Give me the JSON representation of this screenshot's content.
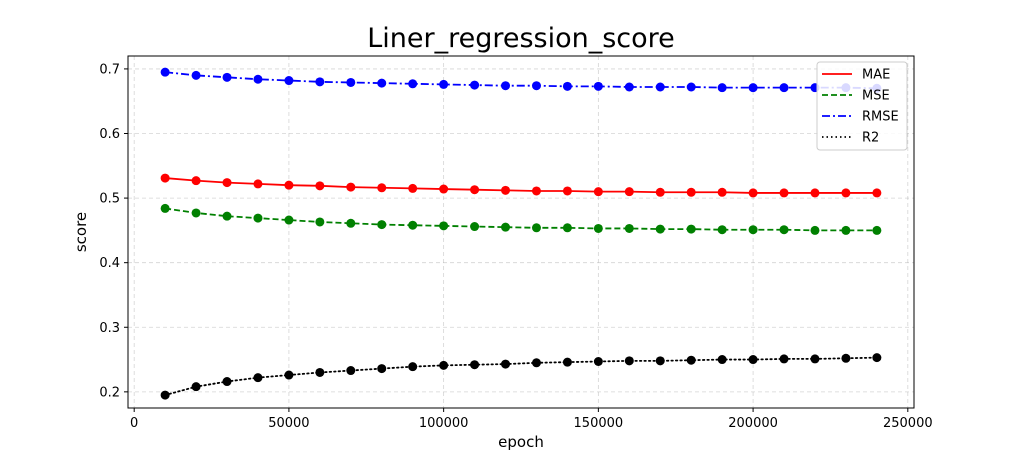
{
  "chart_data": {
    "type": "line",
    "title": "Liner_regression_score",
    "xlabel": "epoch",
    "ylabel": "score",
    "xlim": [
      -2000,
      252000
    ],
    "ylim": [
      0.175,
      0.72
    ],
    "xticks": [
      0,
      50000,
      100000,
      150000,
      200000,
      250000
    ],
    "xtick_labels": [
      "0",
      "50000",
      "100000",
      "150000",
      "200000",
      "250000"
    ],
    "yticks": [
      0.2,
      0.3,
      0.4,
      0.5,
      0.6,
      0.7
    ],
    "ytick_labels": [
      "0.2",
      "0.3",
      "0.4",
      "0.5",
      "0.6",
      "0.7"
    ],
    "grid": true,
    "legend_position": "top-right",
    "x": [
      10000,
      20000,
      30000,
      40000,
      50000,
      60000,
      70000,
      80000,
      90000,
      100000,
      110000,
      120000,
      130000,
      140000,
      150000,
      160000,
      170000,
      180000,
      190000,
      200000,
      210000,
      220000,
      230000,
      240000
    ],
    "series": [
      {
        "name": "MAE",
        "color": "#ff0000",
        "linestyle": "solid",
        "values": [
          0.531,
          0.527,
          0.524,
          0.522,
          0.52,
          0.519,
          0.517,
          0.516,
          0.515,
          0.514,
          0.513,
          0.512,
          0.511,
          0.511,
          0.51,
          0.51,
          0.509,
          0.509,
          0.509,
          0.508,
          0.508,
          0.508,
          0.508,
          0.508
        ]
      },
      {
        "name": "MSE",
        "color": "#008000",
        "linestyle": "dashed",
        "values": [
          0.484,
          0.477,
          0.472,
          0.469,
          0.466,
          0.463,
          0.461,
          0.459,
          0.458,
          0.457,
          0.456,
          0.455,
          0.454,
          0.454,
          0.453,
          0.453,
          0.452,
          0.452,
          0.451,
          0.451,
          0.451,
          0.45,
          0.45,
          0.45
        ]
      },
      {
        "name": "RMSE",
        "color": "#0000ff",
        "linestyle": "dashdot",
        "values": [
          0.695,
          0.69,
          0.687,
          0.684,
          0.682,
          0.68,
          0.679,
          0.678,
          0.677,
          0.676,
          0.675,
          0.674,
          0.674,
          0.673,
          0.673,
          0.672,
          0.672,
          0.672,
          0.671,
          0.671,
          0.671,
          0.671,
          0.671,
          0.67
        ]
      },
      {
        "name": "R2",
        "color": "#000000",
        "linestyle": "dotted",
        "values": [
          0.195,
          0.208,
          0.216,
          0.222,
          0.226,
          0.23,
          0.233,
          0.236,
          0.239,
          0.241,
          0.242,
          0.243,
          0.245,
          0.246,
          0.247,
          0.248,
          0.248,
          0.249,
          0.25,
          0.25,
          0.251,
          0.251,
          0.252,
          0.253
        ]
      }
    ]
  }
}
